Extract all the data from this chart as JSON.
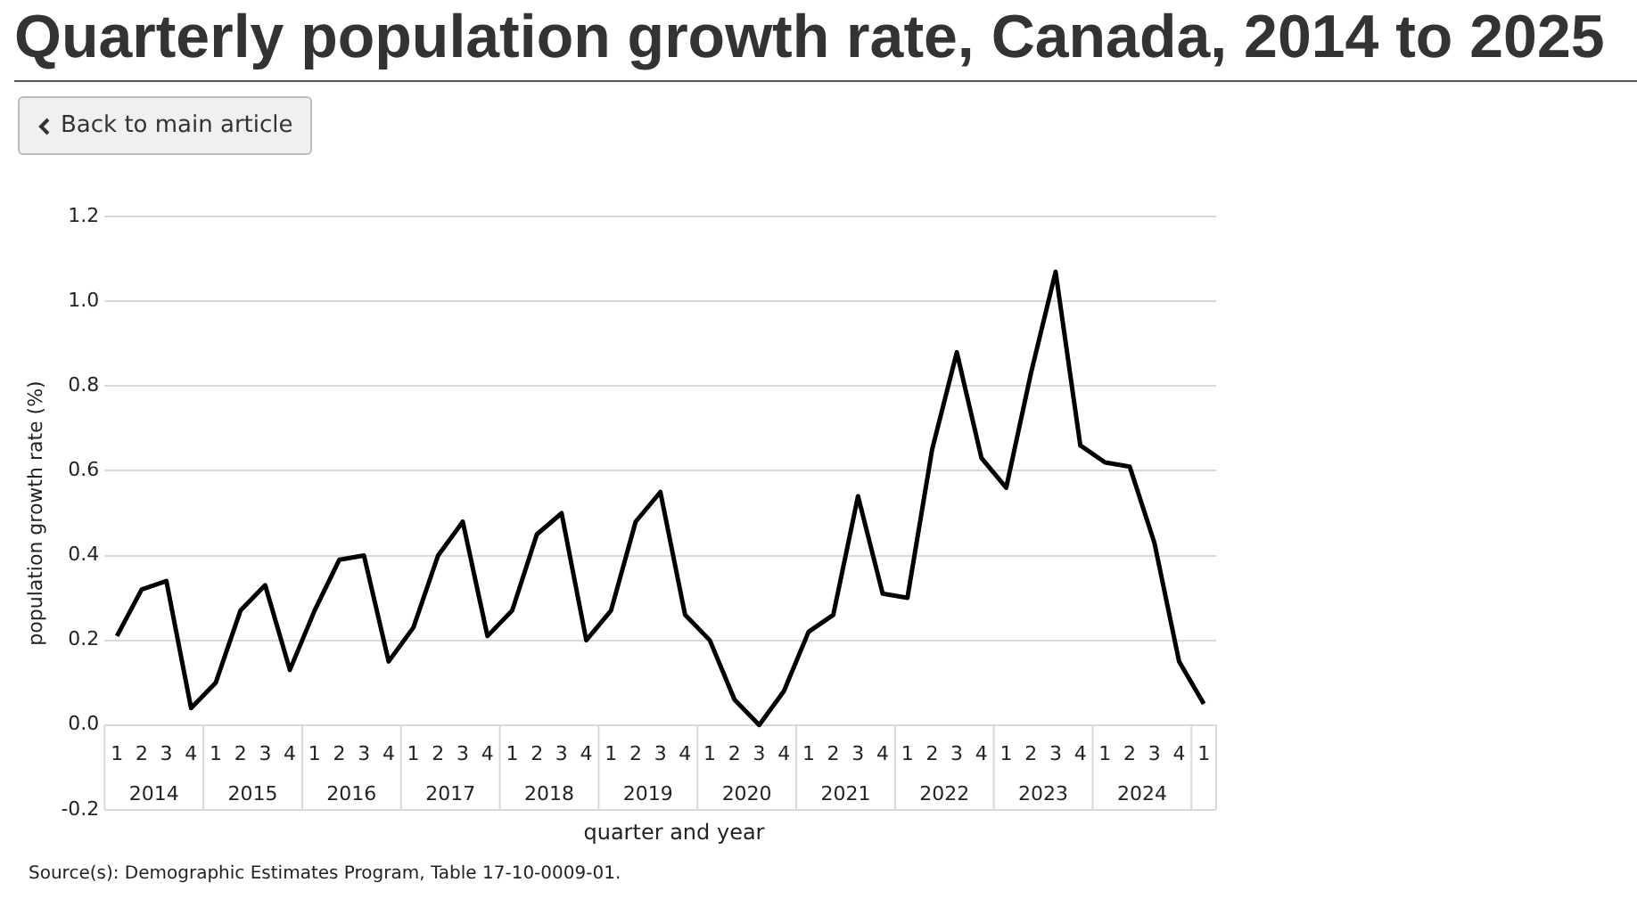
{
  "chart_data": {
    "type": "line",
    "title": "Quarterly population growth rate, Canada, 2014 to 2025",
    "xlabel": "quarter and year",
    "ylabel": "population growth rate (%)",
    "categories": [
      "1",
      "2",
      "3",
      "4",
      "1",
      "2",
      "3",
      "4",
      "1",
      "2",
      "3",
      "4",
      "1",
      "2",
      "3",
      "4",
      "1",
      "2",
      "3",
      "4",
      "1",
      "2",
      "3",
      "4",
      "1",
      "2",
      "3",
      "4",
      "1",
      "2",
      "3",
      "4",
      "1",
      "2",
      "3",
      "4",
      "1",
      "2",
      "3",
      "4",
      "1",
      "2",
      "3",
      "4",
      "1"
    ],
    "series": [
      {
        "color": "#000000",
        "values": [
          0.21,
          0.32,
          0.34,
          0.04,
          0.1,
          0.27,
          0.33,
          0.13,
          0.27,
          0.39,
          0.4,
          0.15,
          0.23,
          0.4,
          0.48,
          0.21,
          0.27,
          0.45,
          0.5,
          0.2,
          0.27,
          0.48,
          0.55,
          0.26,
          0.2,
          0.06,
          0.0,
          0.08,
          0.22,
          0.26,
          0.54,
          0.31,
          0.3,
          0.65,
          0.88,
          0.63,
          0.56,
          0.83,
          1.07,
          0.66,
          0.62,
          0.61,
          0.43,
          0.15,
          0.05
        ]
      }
    ],
    "ylim": [
      -0.2,
      1.2
    ],
    "yticks": [
      {
        "value": -0.2,
        "label": "-0.2"
      },
      {
        "value": 0,
        "label": "0.0"
      },
      {
        "value": 0.2,
        "label": "0.2"
      },
      {
        "value": 0.4,
        "label": "0.4"
      },
      {
        "value": 0.6,
        "label": "0.6"
      },
      {
        "value": 0.8,
        "label": "0.8"
      },
      {
        "value": 1,
        "label": "1.0"
      },
      {
        "value": 1.2,
        "label": "1.2"
      }
    ],
    "grid": "y",
    "legend": false,
    "marker": "none",
    "line_style": "solid",
    "annotations": [
      "Back to main article",
      "Source(s): Demographic Estimates Program, Table 17-10-0009-01.",
      "2014",
      "2015",
      "2016",
      "2017",
      "2018",
      "2019",
      "2020",
      "2021",
      "2022",
      "2023",
      "2024"
    ]
  }
}
